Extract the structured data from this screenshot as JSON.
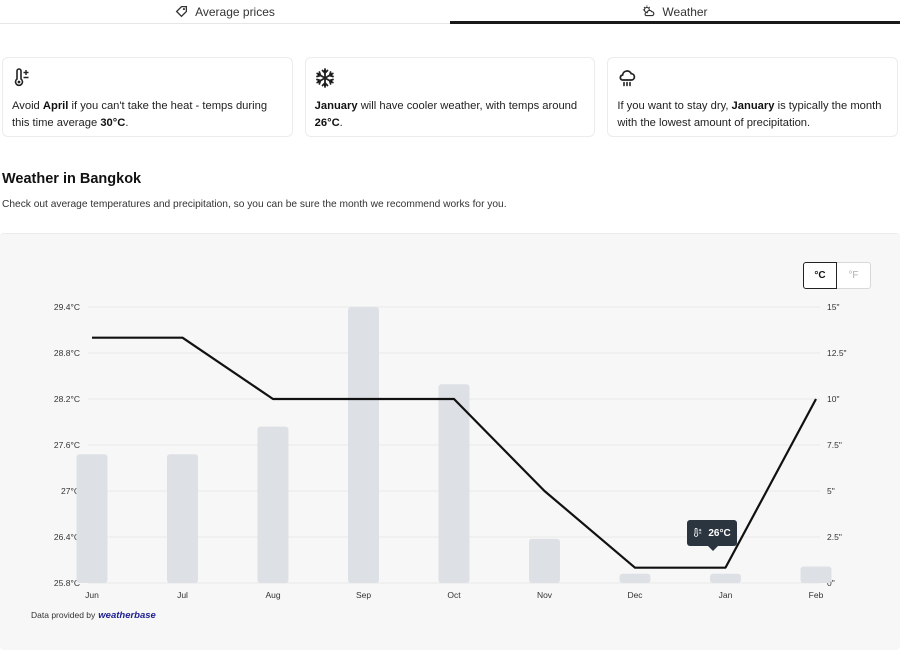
{
  "tabs": [
    {
      "label": "Average prices",
      "icon": "tag-icon"
    },
    {
      "label": "Weather",
      "icon": "partly-cloudy-icon"
    }
  ],
  "cards": [
    {
      "icon": "thermometer-icon",
      "parts": [
        "Avoid ",
        "April",
        " if you can't take the heat - temps during this time average ",
        "30°C",
        "."
      ]
    },
    {
      "icon": "snowflake-icon",
      "parts": [
        "",
        "January",
        " will have cooler weather, with temps around ",
        "26°C",
        "."
      ]
    },
    {
      "icon": "rain-cloud-icon",
      "parts": [
        "If you want to stay dry, ",
        "January",
        " is typically the month with the lowest amount of precipitation.",
        "",
        ""
      ]
    }
  ],
  "section": {
    "title": "Weather in Bangkok",
    "subtitle": "Check out average temperatures and precipitation, so you can be sure the month we recommend works for you."
  },
  "unit_toggle": {
    "celsius": "°C",
    "fahrenheit": "°F",
    "selected": "°C"
  },
  "tooltip": {
    "text": "26°C"
  },
  "credit": {
    "prefix": "Data provided by",
    "brand": "weatherbase"
  },
  "chart_data": {
    "type": "bar",
    "categories": [
      "Jun",
      "Jul",
      "Aug",
      "Sep",
      "Oct",
      "Nov",
      "Dec",
      "Jan",
      "Feb"
    ],
    "series": [
      {
        "type": "line",
        "axis": "left",
        "values": [
          29.0,
          29.0,
          28.2,
          28.2,
          28.2,
          27.0,
          26.0,
          26.0,
          28.2
        ]
      },
      {
        "type": "bar",
        "axis": "right",
        "values": [
          7.0,
          7.0,
          8.5,
          15.0,
          10.8,
          2.4,
          0.5,
          0.5,
          0.9
        ]
      }
    ],
    "y_left": {
      "ticks": [
        "25.8°C",
        "26.4°C",
        "27°C",
        "27.6°C",
        "28.2°C",
        "28.8°C",
        "29.4°C"
      ],
      "lim": [
        25.8,
        29.4
      ]
    },
    "y_right": {
      "ticks": [
        "0\"",
        "2.5\"",
        "5\"",
        "7.5\"",
        "10\"",
        "12.5\"",
        "15\""
      ],
      "lim": [
        0,
        15
      ]
    },
    "grid": true,
    "colors": {
      "line": "#111111",
      "bar": "#dde1e5",
      "grid": "#e9e9e9"
    }
  }
}
